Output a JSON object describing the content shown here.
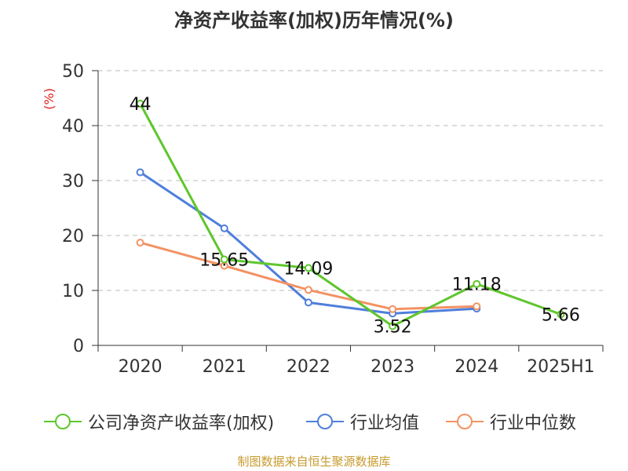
{
  "title": "净资产收益率(加权)历年情况(%)",
  "source": "制图数据来自恒生聚源数据库",
  "colors": {
    "roe": "#5ec62c",
    "industry_avg": "#4f7fdb",
    "industry_median": "#f39263",
    "grid": "#bbbbbb",
    "axis": "#333333",
    "unit": "#e02020"
  },
  "chart_data": {
    "type": "line",
    "title": "净资产收益率(加权)历年情况(%)",
    "ylabel": "(%)",
    "xlabel": "",
    "categories": [
      "2020",
      "2021",
      "2022",
      "2023",
      "2024",
      "2025H1"
    ],
    "ylim": [
      0,
      50
    ],
    "yticks": [
      0,
      10,
      20,
      30,
      40,
      50
    ],
    "grid": true,
    "legend_position": "bottom",
    "series": [
      {
        "name": "公司净资产收益率(加权)",
        "color_key": "roe",
        "values": [
          44,
          15.65,
          14.09,
          3.52,
          11.18,
          5.66
        ],
        "labels": [
          "44",
          "15.65",
          "14.09",
          "3.52",
          "11.18",
          "5.66"
        ]
      },
      {
        "name": "行业均值",
        "color_key": "industry_avg",
        "values": [
          31.5,
          21.3,
          7.8,
          5.8,
          6.7,
          null
        ]
      },
      {
        "name": "行业中位数",
        "color_key": "industry_median",
        "values": [
          18.7,
          14.5,
          10.1,
          6.6,
          7.1,
          null
        ]
      }
    ]
  }
}
